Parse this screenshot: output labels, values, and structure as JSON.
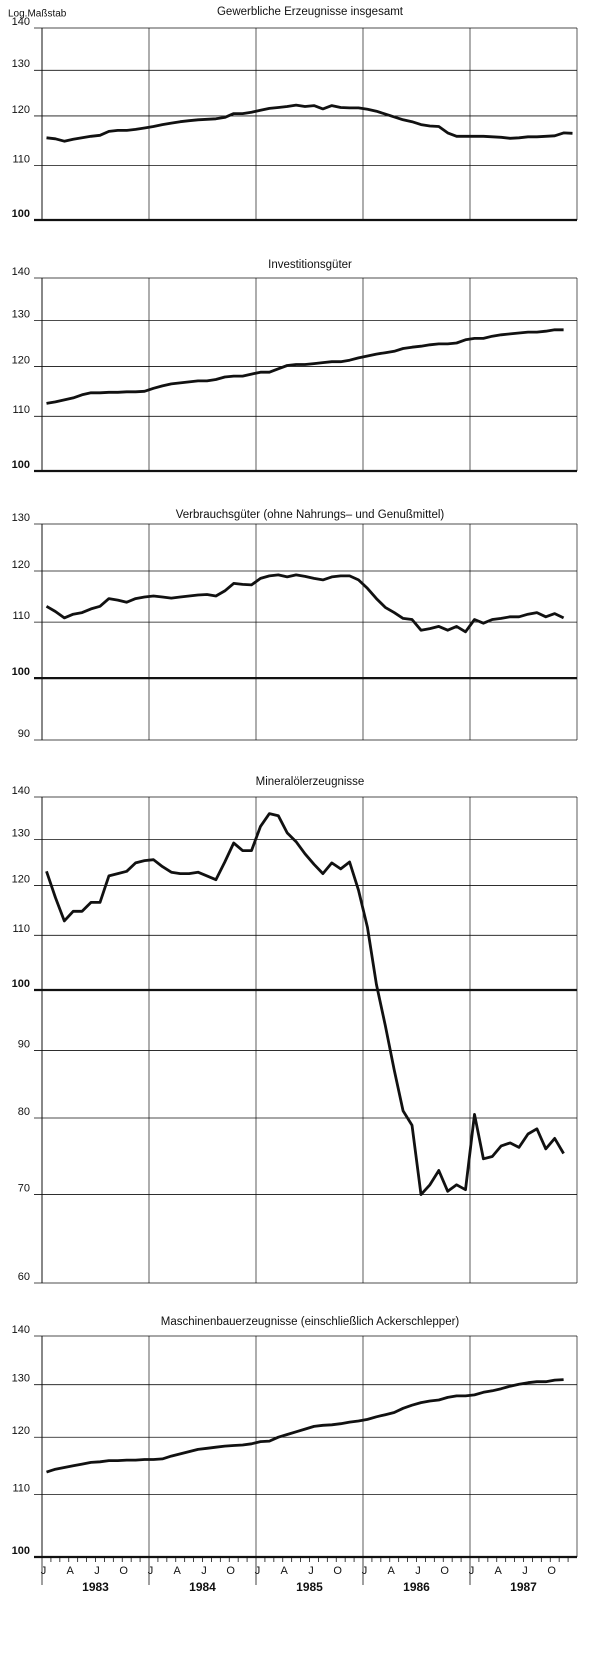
{
  "chart_data": [
    {
      "type": "line",
      "title": "Gewerbliche Erzeugnisse insgesamt",
      "ylabel": "Log.Maßstab",
      "yscale": "log",
      "ylim": [
        100,
        140
      ],
      "yticks": [
        100,
        110,
        120,
        130,
        140
      ],
      "baseline": 100,
      "color": "#111111",
      "values": [
        115.5,
        115.3,
        114.8,
        115.2,
        115.5,
        115.8,
        116,
        116.8,
        117,
        117,
        117.2,
        117.5,
        117.8,
        118.2,
        118.5,
        118.8,
        119,
        119.2,
        119.3,
        119.4,
        119.7,
        120.5,
        120.5,
        120.8,
        121.2,
        121.6,
        121.8,
        122,
        122.3,
        122,
        122.2,
        121.5,
        122.2,
        121.8,
        121.7,
        121.7,
        121.4,
        121,
        120.4,
        119.8,
        119.2,
        118.8,
        118.2,
        117.9,
        117.8,
        116.5,
        115.8,
        115.8,
        115.8,
        115.8,
        115.7,
        115.6,
        115.4,
        115.5,
        115.7,
        115.7,
        115.8,
        115.9,
        116.5,
        116.4
      ]
    },
    {
      "type": "line",
      "title": "Investitionsgüter",
      "yscale": "log",
      "ylim": [
        100,
        140
      ],
      "yticks": [
        100,
        110,
        120,
        130,
        140
      ],
      "baseline": 100,
      "color": "#111111",
      "values": [
        112.5,
        112.8,
        113.2,
        113.6,
        114.2,
        114.6,
        114.6,
        114.7,
        114.7,
        114.8,
        114.8,
        114.9,
        115.5,
        116,
        116.4,
        116.6,
        116.8,
        117,
        117,
        117.3,
        117.8,
        118,
        118,
        118.4,
        118.8,
        118.8,
        119.5,
        120.2,
        120.4,
        120.4,
        120.6,
        120.8,
        121,
        121,
        121.3,
        121.8,
        122.2,
        122.6,
        122.9,
        123.2,
        123.8,
        124.1,
        124.3,
        124.6,
        124.8,
        124.8,
        125,
        125.7,
        126,
        126,
        126.5,
        126.8,
        127,
        127.2,
        127.4,
        127.4,
        127.6,
        127.9,
        127.9,
        null
      ]
    },
    {
      "type": "line",
      "title": "Verbrauchsgüter (ohne Nahrungs– und Genußmittel)",
      "yscale": "log",
      "ylim": [
        90,
        130
      ],
      "yticks": [
        90,
        100,
        110,
        120,
        130
      ],
      "baseline": 100,
      "color": "#111111",
      "values": [
        113,
        112,
        110.8,
        111.5,
        111.8,
        112.5,
        113,
        114.5,
        114.2,
        113.8,
        114.5,
        114.8,
        115,
        114.8,
        114.6,
        114.8,
        115,
        115.2,
        115.3,
        115,
        116,
        117.5,
        117.3,
        117.2,
        118.5,
        119,
        119.2,
        118.8,
        119.2,
        118.9,
        118.5,
        118.2,
        118.8,
        119,
        119,
        118.2,
        116.5,
        114.5,
        112.8,
        111.8,
        110.7,
        110.5,
        108.5,
        108.8,
        109.2,
        108.5,
        109.2,
        108.2,
        110.5,
        109.8,
        110.5,
        110.7,
        111,
        111,
        111.5,
        111.8,
        111,
        111.6,
        110.8,
        null
      ]
    },
    {
      "type": "line",
      "title": "Mineralölerzeugnisse",
      "yscale": "log",
      "ylim": [
        60,
        140
      ],
      "yticks": [
        60,
        70,
        80,
        90,
        100,
        110,
        120,
        130,
        140
      ],
      "baseline": 100,
      "color": "#111111",
      "values": [
        123,
        117.5,
        112.8,
        114.7,
        114.7,
        116.5,
        116.5,
        122,
        122.5,
        123,
        124.8,
        125.3,
        125.5,
        124,
        122.8,
        122.5,
        122.5,
        122.8,
        122,
        121.2,
        125,
        129.2,
        127.5,
        127.5,
        133,
        136,
        135.5,
        131.5,
        129.5,
        126.8,
        124.5,
        122.5,
        124.8,
        123.5,
        125,
        119,
        111.5,
        101,
        94,
        87,
        81,
        79,
        70,
        71.2,
        73,
        70.4,
        71.2,
        70.6,
        80.5,
        74.5,
        74.8,
        76.2,
        76.6,
        76,
        77.8,
        78.5,
        75.8,
        77.2,
        75.2,
        null
      ]
    },
    {
      "type": "line",
      "title": "Maschinenbauerzeugnisse (einschließlich Ackerschlepper)",
      "yscale": "log",
      "ylim": [
        100,
        140
      ],
      "yticks": [
        100,
        110,
        120,
        130,
        140
      ],
      "baseline": 100,
      "color": "#111111",
      "categories": [
        "J",
        null,
        null,
        "A",
        null,
        null,
        "J",
        null,
        null,
        "O",
        null,
        null,
        "J",
        null,
        null,
        "A",
        null,
        null,
        "J",
        null,
        null,
        "O",
        null,
        null,
        "J",
        null,
        null,
        "A",
        null,
        null,
        "J",
        null,
        null,
        "O",
        null,
        null,
        "J",
        null,
        null,
        "A",
        null,
        null,
        "J",
        null,
        null,
        "O",
        null,
        null,
        "J",
        null,
        null,
        "A",
        null,
        null,
        "J",
        null,
        null,
        "O",
        null,
        null
      ],
      "x_groups": [
        "1983",
        "1984",
        "1985",
        "1986",
        "1987"
      ],
      "values": [
        113.8,
        114.3,
        114.6,
        114.9,
        115.2,
        115.5,
        115.6,
        115.8,
        115.8,
        115.9,
        115.9,
        116,
        116,
        116.1,
        116.6,
        117,
        117.4,
        117.8,
        118,
        118.2,
        118.4,
        118.5,
        118.6,
        118.8,
        119.2,
        119.3,
        120,
        120.5,
        121,
        121.5,
        122,
        122.2,
        122.3,
        122.5,
        122.8,
        123,
        123.3,
        123.8,
        124.2,
        124.6,
        125.4,
        126,
        126.5,
        126.8,
        127,
        127.5,
        127.8,
        127.8,
        128,
        128.5,
        128.8,
        129.2,
        129.7,
        130.1,
        130.4,
        130.6,
        130.6,
        130.9,
        131,
        null
      ]
    }
  ]
}
